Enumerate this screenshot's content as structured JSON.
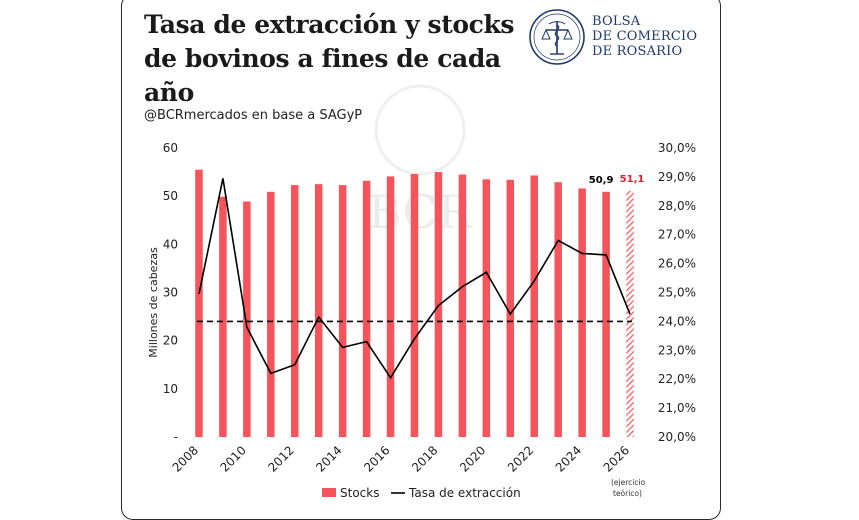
{
  "header": {
    "title": "Tasa de extracción y stocks de bovinos a fines de cada año",
    "source": "@BCRmercados en base a SAGyP"
  },
  "logo": {
    "lines": [
      "BOLSA",
      "DE COMERCIO",
      "DE ROSARIO"
    ],
    "watermark": "BCR",
    "icon": "caduceus-scales-icon"
  },
  "colors": {
    "bar": "#f4555a",
    "line": "#000000",
    "logo": "#1f3a6b"
  },
  "chart_data": {
    "type": "bar",
    "categories": [
      "2008",
      "2009",
      "2010",
      "2011",
      "2012",
      "2013",
      "2014",
      "2015",
      "2016",
      "2017",
      "2018",
      "2019",
      "2020",
      "2021",
      "2022",
      "2023",
      "2024",
      "2025",
      "2026"
    ],
    "x_tick_labels": [
      "2008",
      "2010",
      "2012",
      "2014",
      "2016",
      "2018",
      "2020",
      "2022",
      "2024",
      "2026"
    ],
    "ylabel": "Millones de cabezas",
    "ylim": [
      0,
      60
    ],
    "y_ticks": [
      "-",
      "10",
      "20",
      "30",
      "40",
      "50",
      "60"
    ],
    "y2lim": [
      20,
      30
    ],
    "y2_ticks": [
      "20,0%",
      "21,0%",
      "22,0%",
      "23,0%",
      "24,0%",
      "25,0%",
      "26,0%",
      "27,0%",
      "28,0%",
      "29,0%",
      "30,0%"
    ],
    "series": [
      {
        "name": "Stocks",
        "type": "bar",
        "axis": "left",
        "values": [
          55.5,
          49.9,
          48.9,
          50.9,
          52.3,
          52.5,
          52.3,
          53.2,
          54.1,
          54.6,
          55.0,
          54.5,
          53.5,
          53.4,
          54.3,
          52.9,
          51.6,
          50.9,
          51.1
        ],
        "hatched_last": true
      },
      {
        "name": "Tasa de extracción",
        "type": "line",
        "axis": "right",
        "values": [
          24.95,
          28.95,
          23.8,
          22.2,
          22.5,
          24.15,
          23.1,
          23.3,
          22.05,
          23.4,
          24.55,
          25.2,
          25.7,
          24.25,
          25.4,
          26.8,
          26.35,
          26.3,
          24.25
        ]
      },
      {
        "name": "",
        "type": "reference-line",
        "axis": "right",
        "value": 24.0
      }
    ],
    "data_labels": [
      {
        "category": "2025",
        "text": "50,9",
        "color": "#000000"
      },
      {
        "category": "2026",
        "text": "51,1",
        "color": "#d6262c"
      }
    ],
    "annotation": "(ejercicio teórico)",
    "legend": {
      "position": "bottom",
      "items": [
        "Stocks",
        "Tasa de extracción"
      ]
    }
  }
}
